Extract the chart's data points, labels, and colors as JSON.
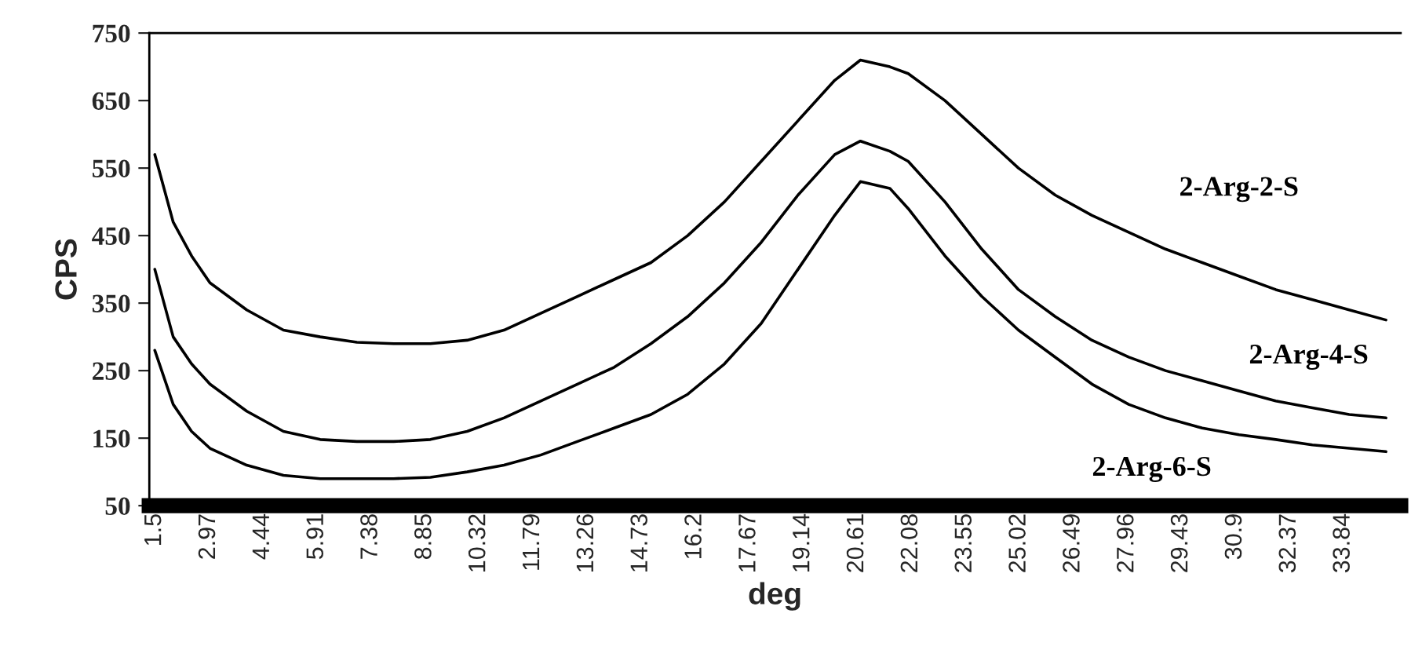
{
  "chart_data": {
    "type": "line",
    "xlabel": "deg",
    "ylabel": "CPS",
    "xlim": [
      1.35,
      35.4
    ],
    "ylim": [
      50,
      750
    ],
    "xticks": [
      1.5,
      2.97,
      4.44,
      5.91,
      7.38,
      8.85,
      10.32,
      11.79,
      13.26,
      14.73,
      16.2,
      17.67,
      19.14,
      20.61,
      22.08,
      23.55,
      25.02,
      26.49,
      27.96,
      29.43,
      30.9,
      32.37,
      33.84
    ],
    "yticks": [
      50,
      150,
      250,
      350,
      450,
      550,
      650,
      750
    ],
    "grid": false,
    "legend": false,
    "marker": "none",
    "line_style": "solid",
    "x": [
      1.5,
      2,
      2.5,
      3,
      4,
      5,
      6,
      7,
      8,
      9,
      10,
      11,
      12,
      13,
      14,
      15,
      16,
      17,
      18,
      19,
      20,
      20.7,
      21.5,
      22,
      23,
      24,
      25,
      26,
      27,
      28,
      29,
      30,
      31,
      32,
      33,
      34,
      35
    ],
    "series": [
      {
        "name": "2-Arg-2-S",
        "color": "#000000",
        "values": [
          570,
          470,
          420,
          380,
          340,
          310,
          300,
          292,
          290,
          290,
          295,
          310,
          335,
          360,
          385,
          410,
          450,
          500,
          560,
          620,
          680,
          710,
          700,
          690,
          650,
          600,
          550,
          510,
          480,
          455,
          430,
          410,
          390,
          370,
          355,
          340,
          325
        ]
      },
      {
        "name": "2-Arg-4-S",
        "color": "#000000",
        "values": [
          400,
          300,
          260,
          230,
          190,
          160,
          148,
          145,
          145,
          148,
          160,
          180,
          205,
          230,
          255,
          290,
          330,
          380,
          440,
          510,
          570,
          590,
          575,
          560,
          500,
          430,
          370,
          330,
          295,
          270,
          250,
          235,
          220,
          205,
          195,
          185,
          180
        ]
      },
      {
        "name": "2-Arg-6-S",
        "color": "#000000",
        "values": [
          280,
          200,
          160,
          135,
          110,
          95,
          90,
          90,
          90,
          92,
          100,
          110,
          125,
          145,
          165,
          185,
          215,
          260,
          320,
          400,
          480,
          530,
          520,
          490,
          420,
          360,
          310,
          270,
          230,
          200,
          180,
          165,
          155,
          148,
          140,
          135,
          130
        ]
      }
    ]
  }
}
